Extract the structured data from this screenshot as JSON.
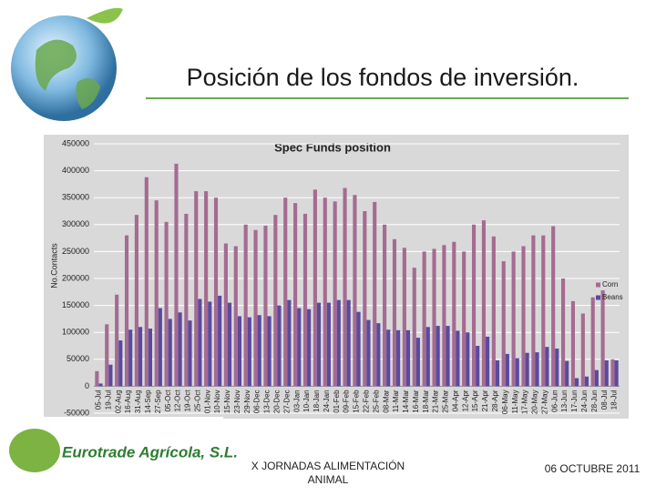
{
  "header": {
    "title": "Posición de los fondos de inversión."
  },
  "chart_data": {
    "type": "bar",
    "title": "Spec Funds position",
    "y_label": "No.Contacts",
    "categories": [
      "05-Jul",
      "19-Jul",
      "02-Aug",
      "16-Aug",
      "31-Aug",
      "14-Sep",
      "27-Sep",
      "05-Oct",
      "12-Oct",
      "19-Oct",
      "25-Oct",
      "01-Nov",
      "10-Nov",
      "15-Nov",
      "23-Nov",
      "29-Nov",
      "06-Dec",
      "13-Dec",
      "20-Dec",
      "27-Dec",
      "03-Jan",
      "10-Jan",
      "18-Jan",
      "24-Jan",
      "01-Feb",
      "09-Feb",
      "15-Feb",
      "22-Feb",
      "25-Feb",
      "08-Mar",
      "11-Mar",
      "14-Mar",
      "16-Mar",
      "18-Mar",
      "21-Mar",
      "25-Mar",
      "04-Apr",
      "12-Apr",
      "15-Apr",
      "21-Apr",
      "28-Apr",
      "06-May",
      "11-May",
      "17-May",
      "20-May",
      "27-May",
      "06-Jun",
      "13-Jun",
      "17-Jun",
      "24-Jun",
      "28-Jun",
      "08-Jul",
      "18-Jul"
    ],
    "series": [
      {
        "name": "Corn",
        "color": "#a56b91",
        "values": [
          28000,
          115000,
          170000,
          280000,
          318000,
          388000,
          345000,
          305000,
          413000,
          320000,
          362000,
          362000,
          350000,
          265000,
          260000,
          300000,
          290000,
          298000,
          318000,
          350000,
          340000,
          320000,
          365000,
          350000,
          343000,
          368000,
          355000,
          325000,
          342000,
          300000,
          273000,
          257000,
          220000,
          250000,
          255000,
          262000,
          268000,
          250000,
          300000,
          308000,
          278000,
          232000,
          250000,
          260000,
          280000,
          280000,
          297000,
          200000,
          158000,
          135000,
          165000,
          178000,
          50000
        ]
      },
      {
        "name": "Beans",
        "color": "#5a4a9e",
        "values": [
          5000,
          40000,
          85000,
          105000,
          110000,
          107000,
          145000,
          125000,
          137000,
          122000,
          162000,
          157000,
          168000,
          155000,
          130000,
          128000,
          132000,
          130000,
          150000,
          160000,
          145000,
          143000,
          155000,
          155000,
          160000,
          160000,
          138000,
          123000,
          117000,
          105000,
          104000,
          104000,
          90000,
          110000,
          112000,
          112000,
          103000,
          100000,
          75000,
          92000,
          48000,
          60000,
          52000,
          62000,
          63000,
          73000,
          70000,
          47000,
          15000,
          18000,
          30000,
          48000,
          48000
        ]
      }
    ],
    "ylim": [
      -50000,
      450000
    ],
    "yticks": [
      -50000,
      0,
      50000,
      100000,
      150000,
      200000,
      250000,
      300000,
      350000,
      400000,
      450000
    ],
    "grid": true,
    "legend": "right"
  },
  "footer": {
    "company": "Eurotrade Agrícola, S.L.",
    "event": [
      "X JORNADAS ALIMENTACIÓN",
      "ANIMAL"
    ],
    "date": "06 OCTUBRE 2011"
  }
}
